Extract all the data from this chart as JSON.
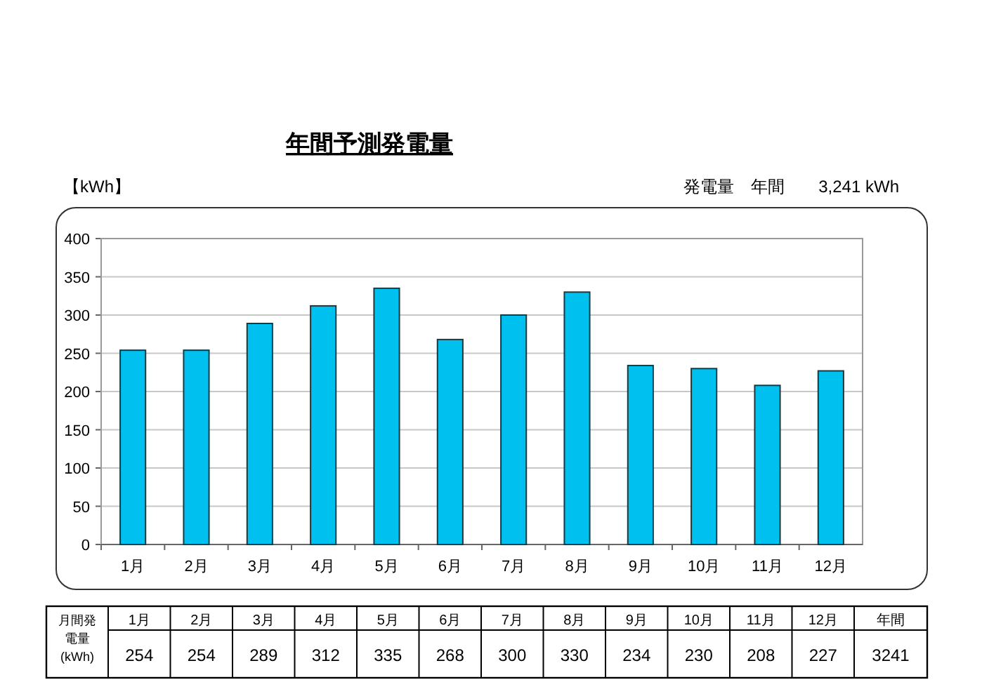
{
  "chart_data": {
    "type": "bar",
    "title": "年間予測発電量",
    "ylabel": "【kWh】",
    "annotations": [
      "発電量　年間　　3,241 kWh",
      "月間発電量(kWh)",
      "年間",
      "3241"
    ],
    "categories": [
      "1月",
      "2月",
      "3月",
      "4月",
      "5月",
      "6月",
      "7月",
      "8月",
      "9月",
      "10月",
      "11月",
      "12月"
    ],
    "values": [
      254,
      254,
      289,
      312,
      335,
      268,
      300,
      330,
      234,
      230,
      208,
      227
    ],
    "color": "#00c0f0",
    "ylim": [
      0,
      400
    ],
    "yticks": [
      0,
      50,
      100,
      150,
      200,
      250,
      300,
      350,
      400
    ],
    "grid": "y",
    "data_labels": true
  }
}
